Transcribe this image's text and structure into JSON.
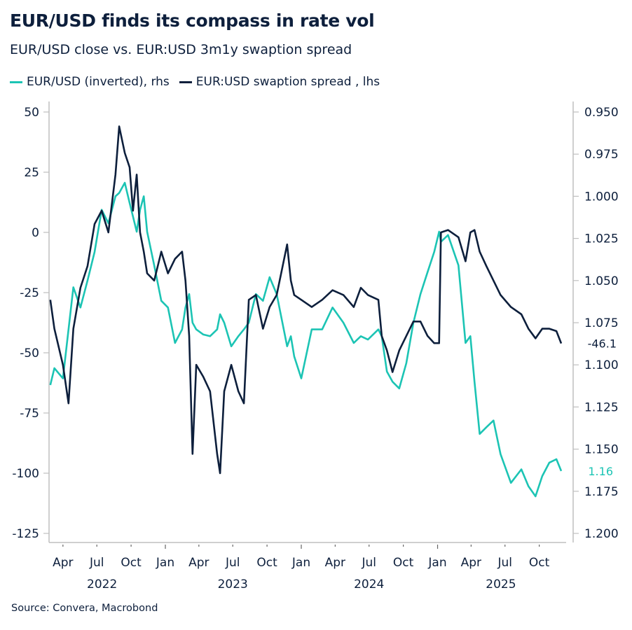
{
  "title": "EUR/USD finds its compass in rate vol",
  "subtitle": "EUR/USD close vs. EUR:USD 3m1y swaption spread",
  "source": "Source: Convera, Macrobond",
  "colors": {
    "eurusd": "#1cc4b4",
    "spread": "#0d1f3c",
    "axis": "#bfbfbf"
  },
  "chart_data": {
    "type": "line",
    "legend_position": "top-left",
    "grid": false,
    "legend": [
      "EUR/USD (inverted), rhs",
      "EUR:USD swaption spread , lhs"
    ],
    "left_axis": {
      "ylim": [
        -125,
        50
      ],
      "ticks": [
        "50",
        "25",
        "0",
        "-25",
        "-50",
        "-75",
        "-100",
        "-125"
      ],
      "tick_values": [
        50,
        25,
        0,
        -25,
        -50,
        -75,
        -100,
        -125
      ]
    },
    "right_axis": {
      "ylim": [
        0.95,
        1.2
      ],
      "inverted": true,
      "ticks": [
        "0.950",
        "0.975",
        "1.000",
        "1.025",
        "1.050",
        "1.075",
        "1.100",
        "1.125",
        "1.150",
        "1.175",
        "1.200"
      ],
      "tick_values": [
        0.95,
        0.975,
        1.0,
        1.025,
        1.05,
        1.075,
        1.1,
        1.125,
        1.15,
        1.175,
        1.2
      ]
    },
    "x_ticks": [
      {
        "date": "2022-04-01",
        "label": "Apr"
      },
      {
        "date": "2022-07-01",
        "label": "Jul"
      },
      {
        "date": "2022-10-01",
        "label": "Oct"
      },
      {
        "date": "2023-01-01",
        "label": "Jan"
      },
      {
        "date": "2023-04-01",
        "label": "Apr"
      },
      {
        "date": "2023-07-01",
        "label": "Jul"
      },
      {
        "date": "2023-10-01",
        "label": "Oct"
      },
      {
        "date": "2024-01-01",
        "label": "Jan"
      },
      {
        "date": "2024-04-01",
        "label": "Apr"
      },
      {
        "date": "2024-07-01",
        "label": "Jul"
      },
      {
        "date": "2024-10-01",
        "label": "Oct"
      },
      {
        "date": "2025-01-01",
        "label": "Jan"
      },
      {
        "date": "2025-04-01",
        "label": "Apr"
      },
      {
        "date": "2025-07-01",
        "label": "Jul"
      },
      {
        "date": "2025-10-01",
        "label": "Oct"
      }
    ],
    "year_labels": [
      {
        "year": "2022",
        "date": "2022-07-15"
      },
      {
        "year": "2023",
        "date": "2023-07-01"
      },
      {
        "year": "2024",
        "date": "2024-07-01"
      },
      {
        "year": "2025",
        "date": "2025-06-20"
      }
    ],
    "dates": [
      "2022-02-26",
      "2022-03-09",
      "2022-04-01",
      "2022-04-16",
      "2022-04-29",
      "2022-05-18",
      "2022-06-06",
      "2022-06-25",
      "2022-07-14",
      "2022-08-01",
      "2022-08-20",
      "2022-08-30",
      "2022-09-14",
      "2022-09-27",
      "2022-10-06",
      "2022-10-16",
      "2022-10-25",
      "2022-11-04",
      "2022-11-13",
      "2022-12-02",
      "2022-12-21",
      "2023-01-08",
      "2023-01-27",
      "2023-02-15",
      "2023-02-24",
      "2023-03-06",
      "2023-03-15",
      "2023-03-25",
      "2023-04-13",
      "2023-05-01",
      "2023-05-20",
      "2023-05-28",
      "2023-06-08",
      "2023-06-27",
      "2023-07-16",
      "2023-07-31",
      "2023-08-13",
      "2023-09-01",
      "2023-09-20",
      "2023-10-08",
      "2023-10-27",
      "2023-11-24",
      "2023-12-04",
      "2023-12-13",
      "2024-01-01",
      "2024-01-29",
      "2024-02-26",
      "2024-03-25",
      "2024-04-23",
      "2024-05-21",
      "2024-06-09",
      "2024-06-28",
      "2024-07-26",
      "2024-08-04",
      "2024-08-18",
      "2024-09-02",
      "2024-09-20",
      "2024-10-09",
      "2024-10-28",
      "2024-11-16",
      "2024-12-05",
      "2024-12-23",
      "2025-01-05",
      "2025-01-10",
      "2025-01-29",
      "2025-02-26",
      "2025-03-17",
      "2025-03-30",
      "2025-04-10",
      "2025-04-24",
      "2025-05-12",
      "2025-05-31",
      "2025-06-19",
      "2025-07-17",
      "2025-08-14",
      "2025-09-02",
      "2025-09-21",
      "2025-10-09",
      "2025-10-28",
      "2025-11-16",
      "2025-11-29"
    ],
    "series": [
      {
        "name": "EUR/USD (inverted), rhs",
        "axis": "right",
        "last_label": "1.16",
        "values": [
          1.112,
          1.102,
          1.108,
          1.079,
          1.054,
          1.066,
          1.05,
          1.033,
          1.008,
          1.016,
          1.0,
          0.998,
          0.992,
          1.004,
          1.012,
          1.021,
          1.008,
          1.0,
          1.021,
          1.041,
          1.062,
          1.066,
          1.087,
          1.079,
          1.066,
          1.058,
          1.075,
          1.079,
          1.082,
          1.083,
          1.079,
          1.07,
          1.075,
          1.089,
          1.083,
          1.079,
          1.075,
          1.058,
          1.062,
          1.048,
          1.058,
          1.089,
          1.083,
          1.095,
          1.108,
          1.079,
          1.079,
          1.066,
          1.075,
          1.087,
          1.083,
          1.085,
          1.079,
          1.083,
          1.104,
          1.11,
          1.114,
          1.099,
          1.075,
          1.058,
          1.045,
          1.033,
          1.021,
          1.027,
          1.023,
          1.041,
          1.087,
          1.083,
          1.11,
          1.141,
          1.137,
          1.133,
          1.153,
          1.17,
          1.162,
          1.172,
          1.178,
          1.166,
          1.158,
          1.156,
          1.163
        ]
      },
      {
        "name": "EUR:USD swaption spread , lhs",
        "axis": "left",
        "last_label": "-46.1",
        "values": [
          -28,
          -40,
          -55,
          -71,
          -40,
          -23,
          -14,
          3.5,
          9,
          0,
          24,
          44,
          33,
          27,
          9,
          24,
          0,
          -8,
          -17,
          -20,
          -8,
          -17,
          -11,
          -8,
          -20,
          -43,
          -92,
          -55,
          -60,
          -66,
          -92,
          -100,
          -66,
          -55,
          -66,
          -71,
          -28,
          -26,
          -40,
          -31,
          -26,
          -5,
          -20,
          -26,
          -28,
          -31,
          -28,
          -24,
          -26,
          -31,
          -23,
          -26,
          -28,
          -43,
          -49,
          -58,
          -49,
          -43,
          -37,
          -37,
          -43,
          -46,
          -46,
          0,
          1,
          -2,
          -12,
          0,
          1,
          -8,
          -14,
          -20,
          -26,
          -31,
          -34,
          -40,
          -44,
          -40,
          -40,
          -41,
          -46.1
        ]
      }
    ]
  }
}
